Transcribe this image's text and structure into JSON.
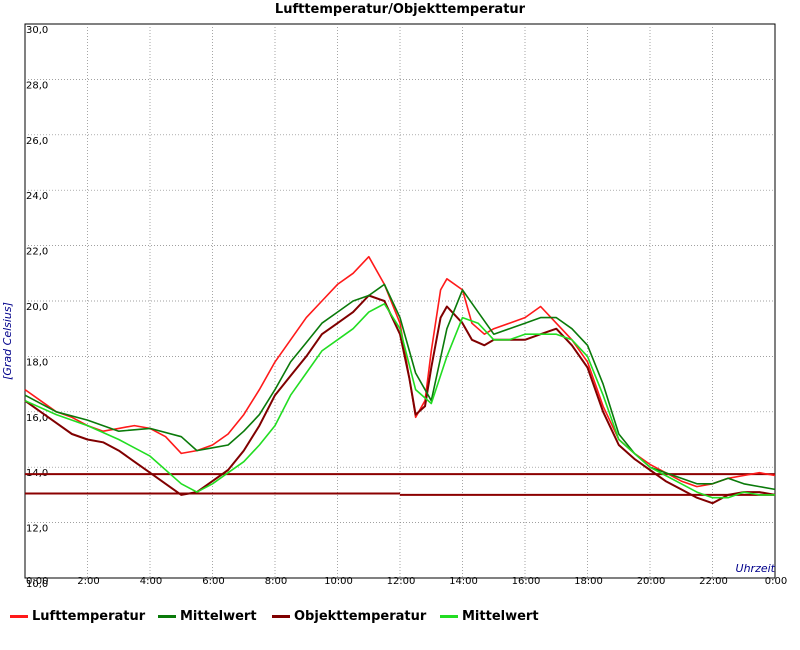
{
  "chart_data": {
    "type": "line",
    "title": "Lufttemperatur/Objekttemperatur",
    "xlabel": "Uhrzeit",
    "ylabel": "[Grad Celsius]",
    "xlim": [
      0,
      24
    ],
    "ylim": [
      10,
      30
    ],
    "x_ticks": [
      "0:00",
      "2:00",
      "4:00",
      "6:00",
      "8:00",
      "10:00",
      "12:00",
      "14:00",
      "16:00",
      "18:00",
      "20:00",
      "22:00",
      "0:00"
    ],
    "y_ticks": [
      "10,0",
      "12,0",
      "14,0",
      "16,0",
      "18,0",
      "20,0",
      "22,0",
      "24,0",
      "26,0",
      "28,0",
      "30,0"
    ],
    "grid": true,
    "legend_position": "bottom",
    "colors": {
      "luft": "#ff1a1a",
      "luft_mittel": "#0a7a0a",
      "objekt": "#800000",
      "objekt_mittel": "#22dd22",
      "limit": "#8b0000",
      "axis_label": "#00008b",
      "grid": "#808080"
    },
    "series": [
      {
        "name": "Lufttemperatur",
        "key": "luft",
        "x": [
          0,
          0.5,
          1,
          1.5,
          2,
          2.5,
          3,
          3.5,
          4,
          4.5,
          5,
          5.5,
          6,
          6.5,
          7,
          7.5,
          8,
          8.5,
          9,
          9.5,
          10,
          10.5,
          11,
          11.5,
          12,
          12.3,
          12.5,
          12.8,
          13,
          13.3,
          13.5,
          14,
          14.3,
          14.7,
          15,
          15.5,
          16,
          16.5,
          17,
          17.5,
          18,
          18.5,
          19,
          19.5,
          20,
          20.5,
          21,
          21.5,
          22,
          22.5,
          23,
          23.5,
          24
        ],
        "y": [
          16.8,
          16.4,
          16.0,
          15.8,
          15.5,
          15.3,
          15.4,
          15.5,
          15.4,
          15.1,
          14.5,
          14.6,
          14.8,
          15.2,
          15.9,
          16.8,
          17.8,
          18.6,
          19.4,
          20.0,
          20.6,
          21.0,
          21.6,
          20.6,
          19.2,
          17.2,
          15.8,
          16.4,
          18.2,
          20.4,
          20.8,
          20.4,
          19.2,
          18.8,
          19.0,
          19.2,
          19.4,
          19.8,
          19.2,
          18.6,
          17.8,
          16.2,
          15.0,
          14.5,
          14.1,
          13.8,
          13.5,
          13.3,
          13.4,
          13.6,
          13.7,
          13.8,
          13.7
        ]
      },
      {
        "name": "Mittelwert",
        "key": "luft_mittel",
        "x": [
          0,
          1,
          2,
          3,
          4,
          5,
          5.5,
          6,
          6.5,
          7,
          7.5,
          8,
          8.5,
          9,
          9.5,
          10,
          10.5,
          11,
          11.5,
          12,
          12.5,
          13,
          13.5,
          14,
          14.5,
          15,
          15.5,
          16,
          16.5,
          17,
          17.5,
          18,
          18.5,
          19,
          19.5,
          20,
          20.5,
          21,
          21.5,
          22,
          22.5,
          23,
          23.5,
          24
        ],
        "y": [
          16.6,
          16.0,
          15.7,
          15.3,
          15.4,
          15.1,
          14.6,
          14.7,
          14.8,
          15.3,
          15.9,
          16.8,
          17.8,
          18.5,
          19.2,
          19.6,
          20.0,
          20.2,
          20.6,
          19.4,
          17.4,
          16.4,
          19.0,
          20.4,
          19.6,
          18.8,
          19.0,
          19.2,
          19.4,
          19.4,
          19.0,
          18.4,
          17.0,
          15.2,
          14.5,
          14.0,
          13.8,
          13.6,
          13.4,
          13.4,
          13.6,
          13.4,
          13.3,
          13.2
        ]
      },
      {
        "name": "Objekttemperatur",
        "key": "objekt",
        "x": [
          0,
          0.5,
          1,
          1.5,
          2,
          2.5,
          3,
          3.5,
          4,
          4.5,
          5,
          5.5,
          6,
          6.5,
          7,
          7.5,
          8,
          8.5,
          9,
          9.5,
          10,
          10.5,
          11,
          11.5,
          12,
          12.3,
          12.5,
          12.8,
          13,
          13.3,
          13.5,
          14,
          14.3,
          14.7,
          15,
          15.5,
          16,
          16.5,
          17,
          17.5,
          18,
          18.5,
          19,
          19.5,
          20,
          20.5,
          21,
          21.5,
          22,
          22.5,
          23,
          23.5,
          24
        ],
        "y": [
          16.4,
          16.0,
          15.6,
          15.2,
          15.0,
          14.9,
          14.6,
          14.2,
          13.8,
          13.4,
          13.0,
          13.1,
          13.5,
          13.9,
          14.6,
          15.5,
          16.6,
          17.3,
          18.0,
          18.8,
          19.2,
          19.6,
          20.2,
          20.0,
          18.8,
          17.2,
          15.9,
          16.2,
          17.6,
          19.4,
          19.8,
          19.2,
          18.6,
          18.4,
          18.6,
          18.6,
          18.6,
          18.8,
          19.0,
          18.4,
          17.6,
          16.0,
          14.8,
          14.3,
          13.9,
          13.5,
          13.2,
          12.9,
          12.7,
          13.0,
          13.1,
          13.1,
          13.0
        ]
      },
      {
        "name": "Mittelwert",
        "key": "objekt_mittel",
        "x": [
          0,
          1,
          2,
          3,
          4,
          5,
          5.5,
          6,
          6.5,
          7,
          7.5,
          8,
          8.5,
          9,
          9.5,
          10,
          10.5,
          11,
          11.5,
          12,
          12.5,
          13,
          13.5,
          14,
          14.5,
          15,
          15.5,
          16,
          16.5,
          17,
          17.5,
          18,
          18.5,
          19,
          19.5,
          20,
          20.5,
          21,
          21.5,
          22,
          22.5,
          23,
          23.5,
          24
        ],
        "y": [
          16.4,
          15.9,
          15.5,
          15.0,
          14.4,
          13.4,
          13.1,
          13.4,
          13.8,
          14.2,
          14.8,
          15.5,
          16.6,
          17.4,
          18.2,
          18.6,
          19.0,
          19.6,
          19.9,
          19.0,
          16.8,
          16.3,
          18.0,
          19.4,
          19.2,
          18.6,
          18.6,
          18.8,
          18.8,
          18.8,
          18.6,
          18.0,
          16.6,
          15.0,
          14.5,
          14.0,
          13.7,
          13.4,
          13.1,
          12.9,
          12.9,
          13.1,
          13.0,
          13.0
        ]
      }
    ],
    "reference_lines": [
      {
        "key": "limit_upper",
        "y": 13.75
      },
      {
        "key": "limit_lower",
        "y": 13.05,
        "y_after_noon": 13.0
      }
    ],
    "legend": [
      "Lufttemperatur",
      "Mittelwert",
      "Objekttemperatur",
      "Mittelwert"
    ]
  }
}
